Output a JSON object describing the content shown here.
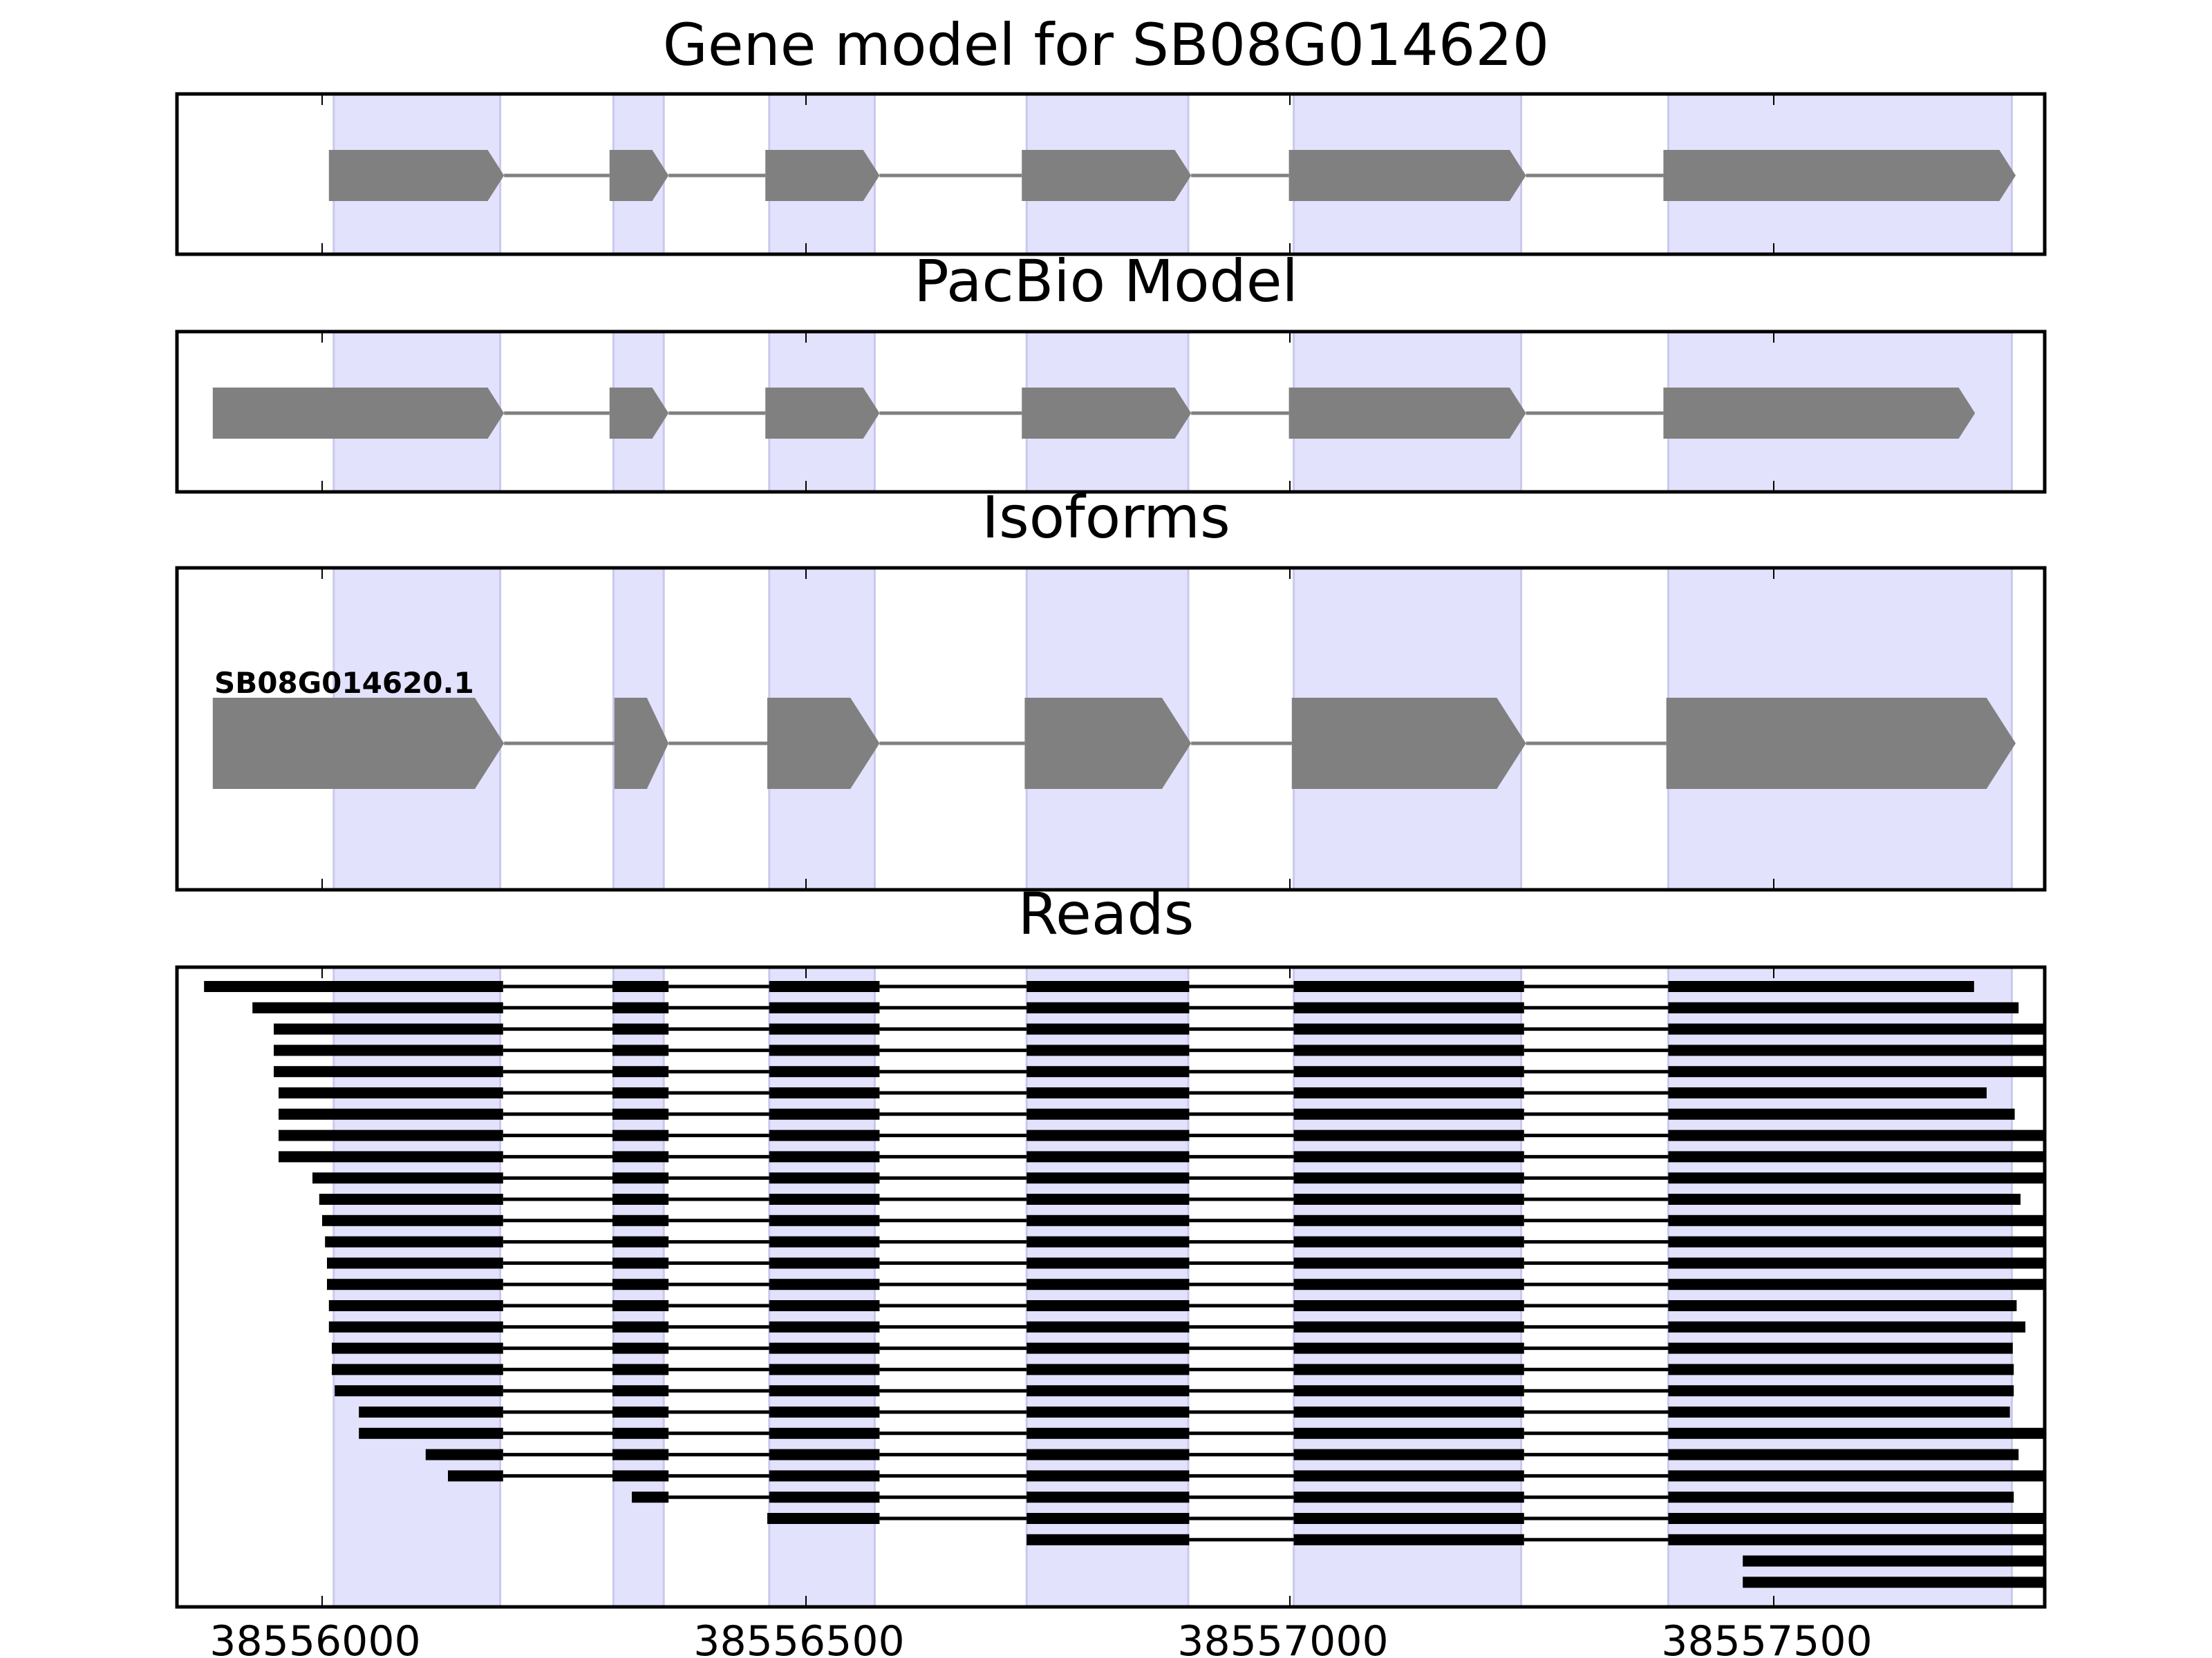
{
  "colors": {
    "exon": "#808080",
    "intron": "#808080",
    "highlight": "#e2e2fd",
    "highlight_edge": "#c9c9ee",
    "read": "#000000",
    "frame": "#000000"
  },
  "chart_data": {
    "type": "gene-track",
    "xlim": [
      38555850,
      38557780
    ],
    "x_ticks": [
      38556000,
      38556500,
      38557000,
      38557500
    ],
    "x_tick_labels": [
      "38556000",
      "38556500",
      "38557000",
      "38557500"
    ],
    "highlight_regions": [
      [
        38556012,
        38556184
      ],
      [
        38556301,
        38556353
      ],
      [
        38556462,
        38556571
      ],
      [
        38556728,
        38556895
      ],
      [
        38557004,
        38557239
      ],
      [
        38557391,
        38557746
      ]
    ],
    "panels": [
      {
        "id": "gene-model",
        "title": "Gene model for SB08G014620",
        "strand": "+",
        "exons": [
          [
            38556007,
            38556188
          ],
          [
            38556297,
            38556358
          ],
          [
            38556458,
            38556576
          ],
          [
            38556723,
            38556898
          ],
          [
            38556999,
            38557244
          ],
          [
            38557386,
            38557750
          ]
        ]
      },
      {
        "id": "pacbio-model",
        "title": "PacBio Model",
        "strand": "+",
        "exons": [
          [
            38555887,
            38556188
          ],
          [
            38556297,
            38556358
          ],
          [
            38556458,
            38556576
          ],
          [
            38556723,
            38556898
          ],
          [
            38556999,
            38557244
          ],
          [
            38557386,
            38557708
          ]
        ]
      },
      {
        "id": "isoforms",
        "title": "Isoforms",
        "strand": "+",
        "label": "SB08G014620.1",
        "exons": [
          [
            38555887,
            38556188
          ],
          [
            38556302,
            38556358
          ],
          [
            38556460,
            38556576
          ],
          [
            38556726,
            38556898
          ],
          [
            38557002,
            38557244
          ],
          [
            38557389,
            38557750
          ]
        ]
      }
    ],
    "reads_panel": {
      "title": "Reads",
      "reads": [
        [
          [
            38555878,
            38556187
          ],
          [
            38556300,
            38556358
          ],
          [
            38556462,
            38556576
          ],
          [
            38556728,
            38556896
          ],
          [
            38557004,
            38557242
          ],
          [
            38557391,
            38557707
          ]
        ],
        [
          [
            38555928,
            38556187
          ],
          [
            38556300,
            38556358
          ],
          [
            38556462,
            38556576
          ],
          [
            38556728,
            38556896
          ],
          [
            38557004,
            38557242
          ],
          [
            38557391,
            38557753
          ]
        ],
        [
          [
            38555950,
            38556187
          ],
          [
            38556300,
            38556358
          ],
          [
            38556462,
            38556576
          ],
          [
            38556728,
            38556896
          ],
          [
            38557004,
            38557242
          ],
          [
            38557391,
            38557780
          ]
        ],
        [
          [
            38555950,
            38556187
          ],
          [
            38556300,
            38556358
          ],
          [
            38556462,
            38556576
          ],
          [
            38556728,
            38556896
          ],
          [
            38557004,
            38557242
          ],
          [
            38557391,
            38557780
          ]
        ],
        [
          [
            38555950,
            38556187
          ],
          [
            38556300,
            38556358
          ],
          [
            38556462,
            38556576
          ],
          [
            38556728,
            38556896
          ],
          [
            38557004,
            38557242
          ],
          [
            38557391,
            38557780
          ]
        ],
        [
          [
            38555955,
            38556187
          ],
          [
            38556300,
            38556358
          ],
          [
            38556462,
            38556576
          ],
          [
            38556728,
            38556896
          ],
          [
            38557004,
            38557242
          ],
          [
            38557391,
            38557720
          ]
        ],
        [
          [
            38555955,
            38556187
          ],
          [
            38556300,
            38556358
          ],
          [
            38556462,
            38556576
          ],
          [
            38556728,
            38556896
          ],
          [
            38557004,
            38557242
          ],
          [
            38557391,
            38557749
          ]
        ],
        [
          [
            38555955,
            38556187
          ],
          [
            38556300,
            38556358
          ],
          [
            38556462,
            38556576
          ],
          [
            38556728,
            38556896
          ],
          [
            38557004,
            38557242
          ],
          [
            38557391,
            38557780
          ]
        ],
        [
          [
            38555955,
            38556187
          ],
          [
            38556300,
            38556358
          ],
          [
            38556462,
            38556576
          ],
          [
            38556728,
            38556896
          ],
          [
            38557004,
            38557242
          ],
          [
            38557391,
            38557780
          ]
        ],
        [
          [
            38555990,
            38556187
          ],
          [
            38556300,
            38556358
          ],
          [
            38556462,
            38556576
          ],
          [
            38556728,
            38556896
          ],
          [
            38557004,
            38557242
          ],
          [
            38557391,
            38557780
          ]
        ],
        [
          [
            38555997,
            38556187
          ],
          [
            38556300,
            38556358
          ],
          [
            38556462,
            38556576
          ],
          [
            38556728,
            38556896
          ],
          [
            38557004,
            38557242
          ],
          [
            38557391,
            38557755
          ]
        ],
        [
          [
            38556000,
            38556187
          ],
          [
            38556300,
            38556358
          ],
          [
            38556462,
            38556576
          ],
          [
            38556728,
            38556896
          ],
          [
            38557004,
            38557242
          ],
          [
            38557391,
            38557780
          ]
        ],
        [
          [
            38556003,
            38556187
          ],
          [
            38556300,
            38556358
          ],
          [
            38556462,
            38556576
          ],
          [
            38556728,
            38556896
          ],
          [
            38557004,
            38557242
          ],
          [
            38557391,
            38557780
          ]
        ],
        [
          [
            38556005,
            38556187
          ],
          [
            38556300,
            38556358
          ],
          [
            38556462,
            38556576
          ],
          [
            38556728,
            38556896
          ],
          [
            38557004,
            38557242
          ],
          [
            38557391,
            38557780
          ]
        ],
        [
          [
            38556005,
            38556187
          ],
          [
            38556300,
            38556358
          ],
          [
            38556462,
            38556576
          ],
          [
            38556728,
            38556896
          ],
          [
            38557004,
            38557242
          ],
          [
            38557391,
            38557780
          ]
        ],
        [
          [
            38556007,
            38556187
          ],
          [
            38556300,
            38556358
          ],
          [
            38556462,
            38556576
          ],
          [
            38556728,
            38556896
          ],
          [
            38557004,
            38557242
          ],
          [
            38557391,
            38557751
          ]
        ],
        [
          [
            38556007,
            38556187
          ],
          [
            38556300,
            38556358
          ],
          [
            38556462,
            38556576
          ],
          [
            38556728,
            38556896
          ],
          [
            38557004,
            38557242
          ],
          [
            38557391,
            38557760
          ]
        ],
        [
          [
            38556010,
            38556187
          ],
          [
            38556300,
            38556358
          ],
          [
            38556462,
            38556576
          ],
          [
            38556728,
            38556896
          ],
          [
            38557004,
            38557242
          ],
          [
            38557391,
            38557747
          ]
        ],
        [
          [
            38556010,
            38556187
          ],
          [
            38556300,
            38556358
          ],
          [
            38556462,
            38556576
          ],
          [
            38556728,
            38556896
          ],
          [
            38557004,
            38557242
          ],
          [
            38557391,
            38557748
          ]
        ],
        [
          [
            38556013,
            38556187
          ],
          [
            38556300,
            38556358
          ],
          [
            38556462,
            38556576
          ],
          [
            38556728,
            38556896
          ],
          [
            38557004,
            38557242
          ],
          [
            38557391,
            38557748
          ]
        ],
        [
          [
            38556038,
            38556187
          ],
          [
            38556300,
            38556358
          ],
          [
            38556462,
            38556576
          ],
          [
            38556728,
            38556896
          ],
          [
            38557004,
            38557242
          ],
          [
            38557391,
            38557744
          ]
        ],
        [
          [
            38556038,
            38556187
          ],
          [
            38556300,
            38556358
          ],
          [
            38556462,
            38556576
          ],
          [
            38556728,
            38556896
          ],
          [
            38557004,
            38557242
          ],
          [
            38557391,
            38557780
          ]
        ],
        [
          [
            38556107,
            38556187
          ],
          [
            38556300,
            38556358
          ],
          [
            38556462,
            38556576
          ],
          [
            38556728,
            38556896
          ],
          [
            38557004,
            38557242
          ],
          [
            38557391,
            38557753
          ]
        ],
        [
          [
            38556130,
            38556187
          ],
          [
            38556300,
            38556358
          ],
          [
            38556462,
            38556576
          ],
          [
            38556728,
            38556896
          ],
          [
            38557004,
            38557242
          ],
          [
            38557391,
            38557780
          ]
        ],
        [
          [
            38556320,
            38556358
          ],
          [
            38556462,
            38556576
          ],
          [
            38556728,
            38556896
          ],
          [
            38557004,
            38557242
          ],
          [
            38557391,
            38557748
          ]
        ],
        [
          [
            38556460,
            38556576
          ],
          [
            38556728,
            38556896
          ],
          [
            38557004,
            38557242
          ],
          [
            38557391,
            38557780
          ]
        ],
        [
          [
            38556728,
            38556896
          ],
          [
            38557004,
            38557242
          ],
          [
            38557391,
            38557780
          ]
        ],
        [
          [
            38557468,
            38557780
          ]
        ],
        [
          [
            38557468,
            38557780
          ]
        ]
      ]
    }
  }
}
